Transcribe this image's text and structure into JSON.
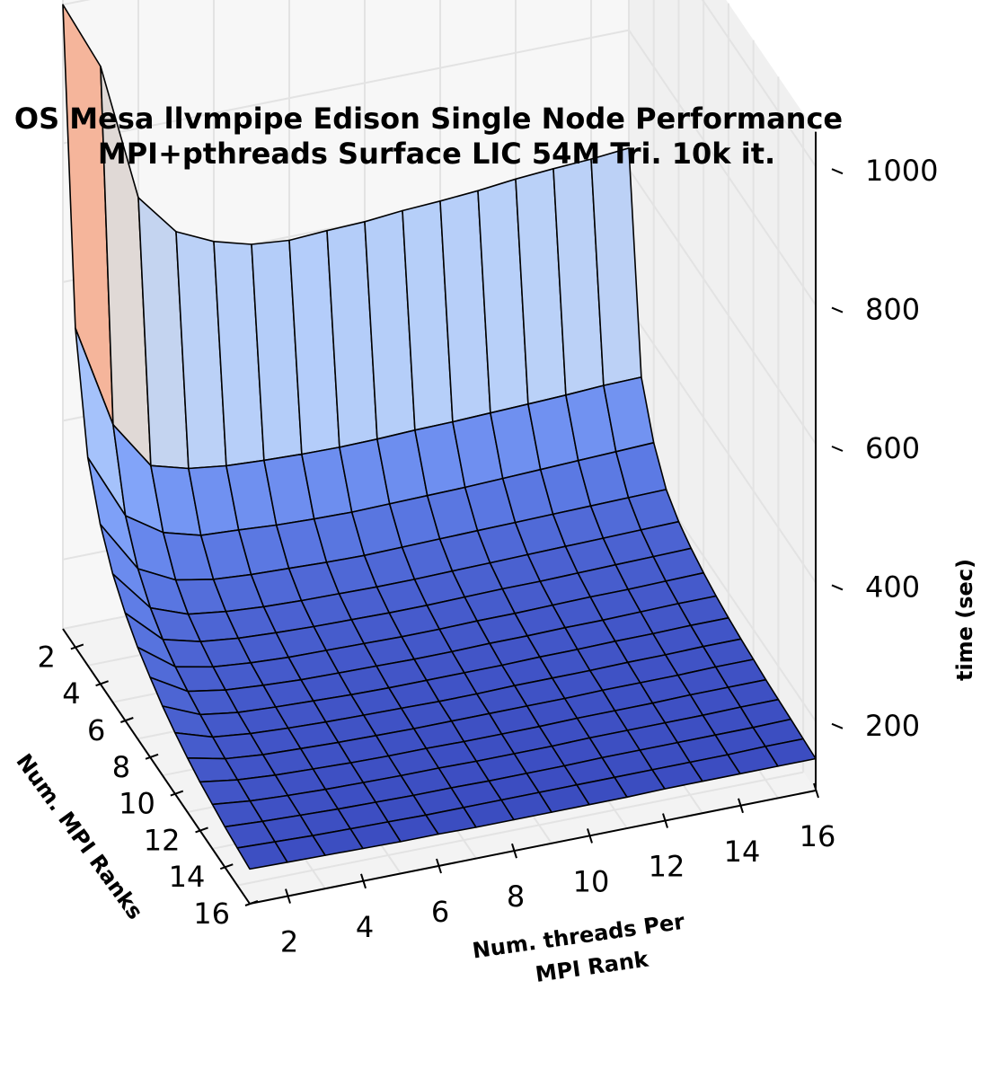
{
  "chart_data": {
    "type": "surface",
    "title_lines": [
      "OS Mesa llvmpipe Edison Single Node Performance",
      "MPI+pthreads Surface LIC 54M Tri. 10k it."
    ],
    "xlabel_lines": [
      "Num. threads Per",
      "MPI Rank"
    ],
    "ylabel": "Num. MPI Ranks",
    "zlabel": "time (sec)",
    "x_ticks": [
      2,
      4,
      6,
      8,
      10,
      12,
      14,
      16
    ],
    "y_ticks": [
      2,
      4,
      6,
      8,
      10,
      12,
      14,
      16
    ],
    "z_ticks": [
      200,
      400,
      600,
      800,
      1000
    ],
    "xlim": [
      1,
      16
    ],
    "ylim": [
      1,
      16
    ],
    "zlim": [
      100,
      1050
    ],
    "colormap": "coolwarm",
    "grid": true,
    "surface": {
      "rows_mpi_ranks_1_to_16": [
        [
          1000,
          900,
          700,
          640,
          615,
          600,
          595,
          598,
          600,
          605,
          608,
          612,
          618,
          622,
          625,
          630
        ],
        [
          560,
          410,
          340,
          325,
          318,
          315,
          313,
          312,
          313,
          315,
          316,
          318,
          320,
          322,
          325,
          326
        ],
        [
          400,
          305,
          270,
          255,
          252,
          248,
          246,
          245,
          246,
          247,
          248,
          250,
          252,
          254,
          256,
          258
        ],
        [
          330,
          255,
          228,
          218,
          214,
          212,
          210,
          209,
          210,
          211,
          212,
          213,
          214,
          215,
          216,
          217
        ],
        [
          285,
          225,
          205,
          198,
          194,
          192,
          191,
          190,
          190,
          191,
          192,
          193,
          194,
          195,
          196,
          197
        ],
        [
          255,
          206,
          192,
          186,
          183,
          181,
          180,
          179,
          179,
          180,
          181,
          181,
          182,
          183,
          184,
          185
        ],
        [
          232,
          193,
          182,
          177,
          174,
          173,
          172,
          171,
          171,
          172,
          172,
          173,
          174,
          174,
          175,
          176
        ],
        [
          215,
          184,
          175,
          171,
          168,
          167,
          166,
          165,
          165,
          166,
          166,
          167,
          167,
          168,
          169,
          169
        ],
        [
          200,
          177,
          169,
          166,
          164,
          162,
          161,
          161,
          161,
          161,
          162,
          162,
          163,
          163,
          164,
          164
        ],
        [
          188,
          171,
          165,
          162,
          160,
          159,
          158,
          157,
          157,
          158,
          158,
          158,
          159,
          159,
          160,
          160
        ],
        [
          178,
          166,
          161,
          159,
          157,
          156,
          155,
          155,
          155,
          155,
          155,
          156,
          156,
          156,
          157,
          157
        ],
        [
          170,
          162,
          158,
          156,
          154,
          153,
          153,
          152,
          152,
          152,
          153,
          153,
          153,
          154,
          154,
          154
        ],
        [
          164,
          158,
          155,
          153,
          152,
          151,
          151,
          150,
          150,
          150,
          151,
          151,
          151,
          151,
          152,
          152
        ],
        [
          158,
          155,
          153,
          151,
          150,
          149,
          149,
          148,
          148,
          148,
          149,
          149,
          149,
          149,
          149,
          150
        ],
        [
          154,
          152,
          150,
          149,
          148,
          147,
          147,
          147,
          147,
          147,
          147,
          147,
          147,
          147,
          148,
          148
        ],
        [
          150,
          149,
          148,
          147,
          146,
          146,
          145,
          145,
          145,
          145,
          145,
          146,
          146,
          146,
          146,
          146
        ]
      ]
    }
  }
}
